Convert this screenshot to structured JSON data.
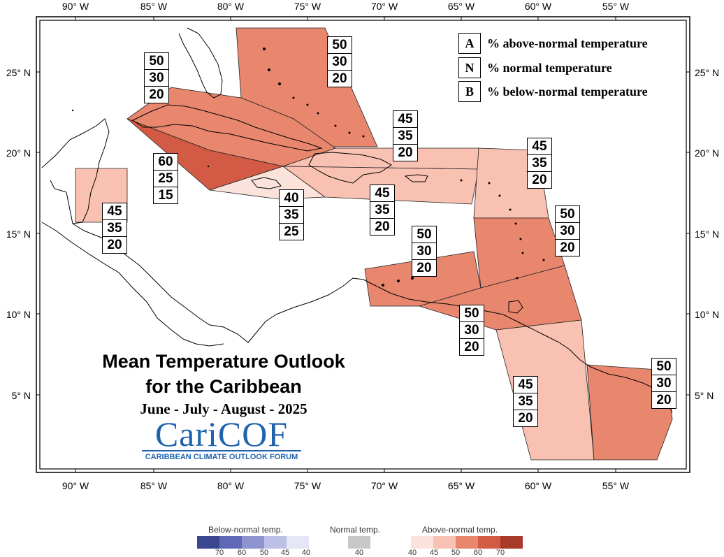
{
  "map": {
    "title_line1": "Mean Temperature Outlook",
    "title_line2": "for the Caribbean",
    "season": "June - July - August - 2025",
    "longitude_labels": [
      "90° W",
      "85° W",
      "80° W",
      "75° W",
      "70° W",
      "65° W",
      "60° W",
      "55° W"
    ],
    "latitude_labels": [
      "25° N",
      "20° N",
      "15° N",
      "10° N",
      "5° N"
    ]
  },
  "key": [
    {
      "letter": "A",
      "text": "% above-normal temperature"
    },
    {
      "letter": "N",
      "text": "% normal temperature"
    },
    {
      "letter": "B",
      "text": "% below-normal temperature"
    }
  ],
  "regions": [
    {
      "name": "bahamas",
      "probs": [
        "50",
        "30",
        "20"
      ],
      "color": "#e8876e"
    },
    {
      "name": "cuba",
      "probs": [
        "50",
        "30",
        "20"
      ],
      "color": "#e8876e"
    },
    {
      "name": "cayman-jamaica-west",
      "probs": [
        "60",
        "25",
        "15"
      ],
      "color": "#d35a44"
    },
    {
      "name": "jamaica-east",
      "probs": [
        "40",
        "35",
        "25"
      ],
      "color": "#fbe3dc"
    },
    {
      "name": "belize",
      "probs": [
        "45",
        "35",
        "20"
      ],
      "color": "#f8c1b1"
    },
    {
      "name": "turks-caicos-north",
      "probs": [
        "45",
        "35",
        "20"
      ],
      "color": "#f8c1b1"
    },
    {
      "name": "hispaniola-pr",
      "probs": [
        "45",
        "35",
        "20"
      ],
      "color": "#f8c1b1"
    },
    {
      "name": "leeward-islands",
      "probs": [
        "45",
        "35",
        "20"
      ],
      "color": "#f8c1b1"
    },
    {
      "name": "windward-islands",
      "probs": [
        "50",
        "30",
        "20"
      ],
      "color": "#e8876e"
    },
    {
      "name": "abc-islands",
      "probs": [
        "50",
        "30",
        "20"
      ],
      "color": "#e8876e"
    },
    {
      "name": "trinidad-tobago",
      "probs": [
        "50",
        "30",
        "20"
      ],
      "color": "#e8876e"
    },
    {
      "name": "guyana",
      "probs": [
        "45",
        "35",
        "20"
      ],
      "color": "#f8c1b1"
    },
    {
      "name": "suriname-french-guiana",
      "probs": [
        "50",
        "30",
        "20"
      ],
      "color": "#e8876e"
    }
  ],
  "logo": {
    "main": "CariCOF",
    "sub": "CARIBBEAN CLIMATE OUTLOOK FORUM"
  },
  "legend": {
    "below": {
      "heading": "Below-normal temp.",
      "ticks": [
        "70",
        "60",
        "50",
        "45",
        "40"
      ],
      "colors": [
        "#3a4690",
        "#5e68b6",
        "#8d93cf",
        "#bcc0e6",
        "#e6e7f6"
      ]
    },
    "normal": {
      "heading": "Normal temp.",
      "ticks": [
        "40"
      ],
      "colors": [
        "#c8c8c8"
      ]
    },
    "above": {
      "heading": "Above-normal temp.",
      "ticks": [
        "40",
        "45",
        "50",
        "60",
        "70"
      ],
      "colors": [
        "#fbe3dc",
        "#f8c1b1",
        "#e8876e",
        "#d35a44",
        "#a83a2a"
      ]
    }
  }
}
